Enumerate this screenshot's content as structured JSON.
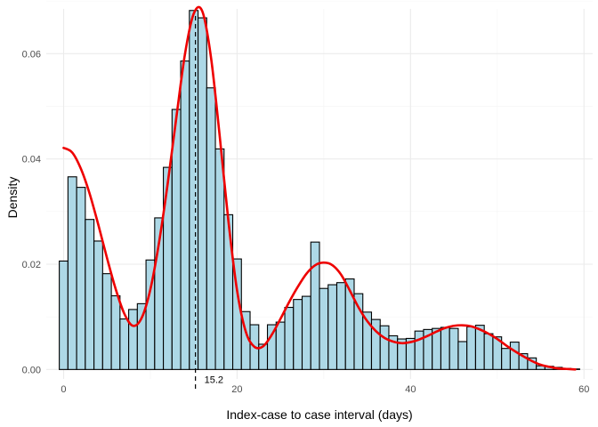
{
  "chart_data": {
    "type": "bar",
    "xlabel": "Index-case to case interval (days)",
    "ylabel": "Density",
    "xlim": [
      -2,
      61
    ],
    "ylim": [
      -0.0018,
      0.0685
    ],
    "x_ticks": [
      0,
      20,
      40,
      60
    ],
    "x_tick_labels": [
      "0",
      "20",
      "40",
      "60"
    ],
    "y_ticks": [
      0,
      0.02,
      0.04,
      0.06
    ],
    "y_tick_labels": [
      "0.00",
      "0.02",
      "0.04",
      "0.06"
    ],
    "grid": true,
    "bin_width": 1,
    "histogram": {
      "bin_starts": [
        -0.5,
        0.5,
        1.5,
        2.5,
        3.5,
        4.5,
        5.5,
        6.5,
        7.5,
        8.5,
        9.5,
        10.5,
        11.5,
        12.5,
        13.5,
        14.5,
        15.5,
        16.5,
        17.5,
        18.5,
        19.5,
        20.5,
        21.5,
        22.5,
        23.5,
        24.5,
        25.5,
        26.5,
        27.5,
        28.5,
        29.5,
        30.5,
        31.5,
        32.5,
        33.5,
        34.5,
        35.5,
        36.5,
        37.5,
        38.5,
        39.5,
        40.5,
        41.5,
        42.5,
        43.5,
        44.5,
        45.5,
        46.5,
        47.5,
        48.5,
        49.5,
        50.5,
        51.5,
        52.5,
        53.5,
        54.5,
        55.5,
        56.5,
        57.5,
        58.5
      ],
      "densities": [
        0.0206,
        0.0366,
        0.0346,
        0.0285,
        0.0244,
        0.0182,
        0.014,
        0.0096,
        0.0114,
        0.0125,
        0.0208,
        0.0288,
        0.0384,
        0.0494,
        0.0586,
        0.0682,
        0.0668,
        0.0535,
        0.0419,
        0.0294,
        0.021,
        0.011,
        0.0085,
        0.0048,
        0.0085,
        0.009,
        0.0118,
        0.0133,
        0.0139,
        0.0242,
        0.0154,
        0.0161,
        0.0165,
        0.0172,
        0.0144,
        0.0109,
        0.0095,
        0.0083,
        0.0064,
        0.0058,
        0.0059,
        0.0073,
        0.0076,
        0.0078,
        0.008,
        0.0078,
        0.0053,
        0.0081,
        0.0084,
        0.0068,
        0.0062,
        0.004,
        0.0052,
        0.003,
        0.0022,
        0.0007,
        0.0006,
        0.0004,
        0.0002,
        0.0001
      ]
    },
    "density_curve": {
      "x": [
        0,
        1,
        2,
        3,
        4,
        5,
        6,
        7,
        8,
        9,
        10,
        11,
        12,
        13,
        14,
        15,
        16,
        17,
        18,
        19,
        20,
        21,
        22,
        23,
        24,
        25,
        26,
        27,
        28,
        29,
        30,
        31,
        32,
        33,
        34,
        35,
        36,
        37,
        38,
        39,
        40,
        41,
        42,
        43,
        44,
        45,
        46,
        47,
        48,
        49,
        50,
        51,
        52,
        53,
        54,
        55,
        56,
        57,
        58,
        59
      ],
      "y": [
        0.0421,
        0.0412,
        0.0381,
        0.0334,
        0.0275,
        0.0212,
        0.0153,
        0.0106,
        0.0083,
        0.0098,
        0.0152,
        0.0241,
        0.0353,
        0.0479,
        0.06,
        0.0676,
        0.068,
        0.0592,
        0.0443,
        0.0282,
        0.015,
        0.0072,
        0.0043,
        0.0044,
        0.0066,
        0.0096,
        0.0128,
        0.0157,
        0.0182,
        0.0198,
        0.0203,
        0.0198,
        0.018,
        0.015,
        0.0118,
        0.0092,
        0.0073,
        0.006,
        0.0053,
        0.005,
        0.0052,
        0.0057,
        0.0064,
        0.0072,
        0.0079,
        0.0083,
        0.0084,
        0.0082,
        0.0076,
        0.0068,
        0.0058,
        0.0046,
        0.0035,
        0.0025,
        0.0016,
        0.0009,
        0.0005,
        0.0002,
        0.0001,
        0.0
      ],
      "color": "#ee0000"
    },
    "vline": {
      "x": 15.2,
      "label": "15.2"
    },
    "colors": {
      "bar_fill": "#add8e6",
      "bar_outline": "#000000",
      "curve": "#ee0000",
      "vline": "#000000"
    }
  }
}
